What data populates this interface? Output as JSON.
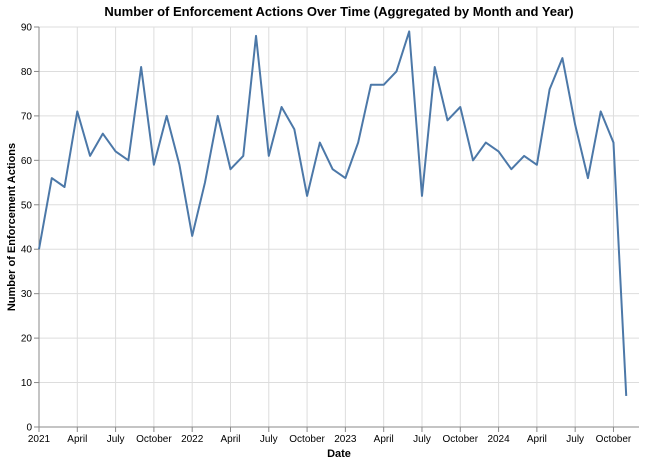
{
  "chart_data": {
    "type": "line",
    "title": "Number of Enforcement Actions Over Time (Aggregated by Month and Year)",
    "xlabel": "Date",
    "ylabel": "Number of Enforcement Actions",
    "ylim": [
      0,
      90
    ],
    "yticks": [
      0,
      10,
      20,
      30,
      40,
      50,
      60,
      70,
      80,
      90
    ],
    "xlim": [
      "2021-01",
      "2024-12"
    ],
    "xticks": [
      {
        "date": "2021-01",
        "label": "2021"
      },
      {
        "date": "2021-04",
        "label": "April"
      },
      {
        "date": "2021-07",
        "label": "July"
      },
      {
        "date": "2021-10",
        "label": "October"
      },
      {
        "date": "2022-01",
        "label": "2022"
      },
      {
        "date": "2022-04",
        "label": "April"
      },
      {
        "date": "2022-07",
        "label": "July"
      },
      {
        "date": "2022-10",
        "label": "October"
      },
      {
        "date": "2023-01",
        "label": "2023"
      },
      {
        "date": "2023-04",
        "label": "April"
      },
      {
        "date": "2023-07",
        "label": "July"
      },
      {
        "date": "2023-10",
        "label": "October"
      },
      {
        "date": "2024-01",
        "label": "2024"
      },
      {
        "date": "2024-04",
        "label": "April"
      },
      {
        "date": "2024-07",
        "label": "July"
      },
      {
        "date": "2024-10",
        "label": "October"
      }
    ],
    "grid": true,
    "color": "#4c78a8",
    "series": [
      {
        "x": [
          "2021-01",
          "2021-02",
          "2021-03",
          "2021-04",
          "2021-05",
          "2021-06",
          "2021-07",
          "2021-08",
          "2021-09",
          "2021-10",
          "2021-11",
          "2021-12",
          "2022-01",
          "2022-02",
          "2022-03",
          "2022-04",
          "2022-05",
          "2022-06",
          "2022-07",
          "2022-08",
          "2022-09",
          "2022-10",
          "2022-11",
          "2022-12",
          "2023-01",
          "2023-02",
          "2023-03",
          "2023-04",
          "2023-05",
          "2023-06",
          "2023-07",
          "2023-08",
          "2023-09",
          "2023-10",
          "2023-11",
          "2023-12",
          "2024-01",
          "2024-02",
          "2024-03",
          "2024-04",
          "2024-05",
          "2024-06",
          "2024-07",
          "2024-08",
          "2024-09",
          "2024-10",
          "2024-11"
        ],
        "values": [
          40,
          56,
          54,
          71,
          61,
          66,
          62,
          60,
          81,
          59,
          70,
          59,
          43,
          55,
          70,
          58,
          61,
          88,
          61,
          72,
          67,
          52,
          64,
          58,
          56,
          64,
          77,
          77,
          80,
          89,
          52,
          81,
          69,
          72,
          60,
          64,
          62,
          58,
          61,
          59,
          76,
          83,
          68,
          56,
          71,
          64,
          7
        ]
      }
    ]
  }
}
